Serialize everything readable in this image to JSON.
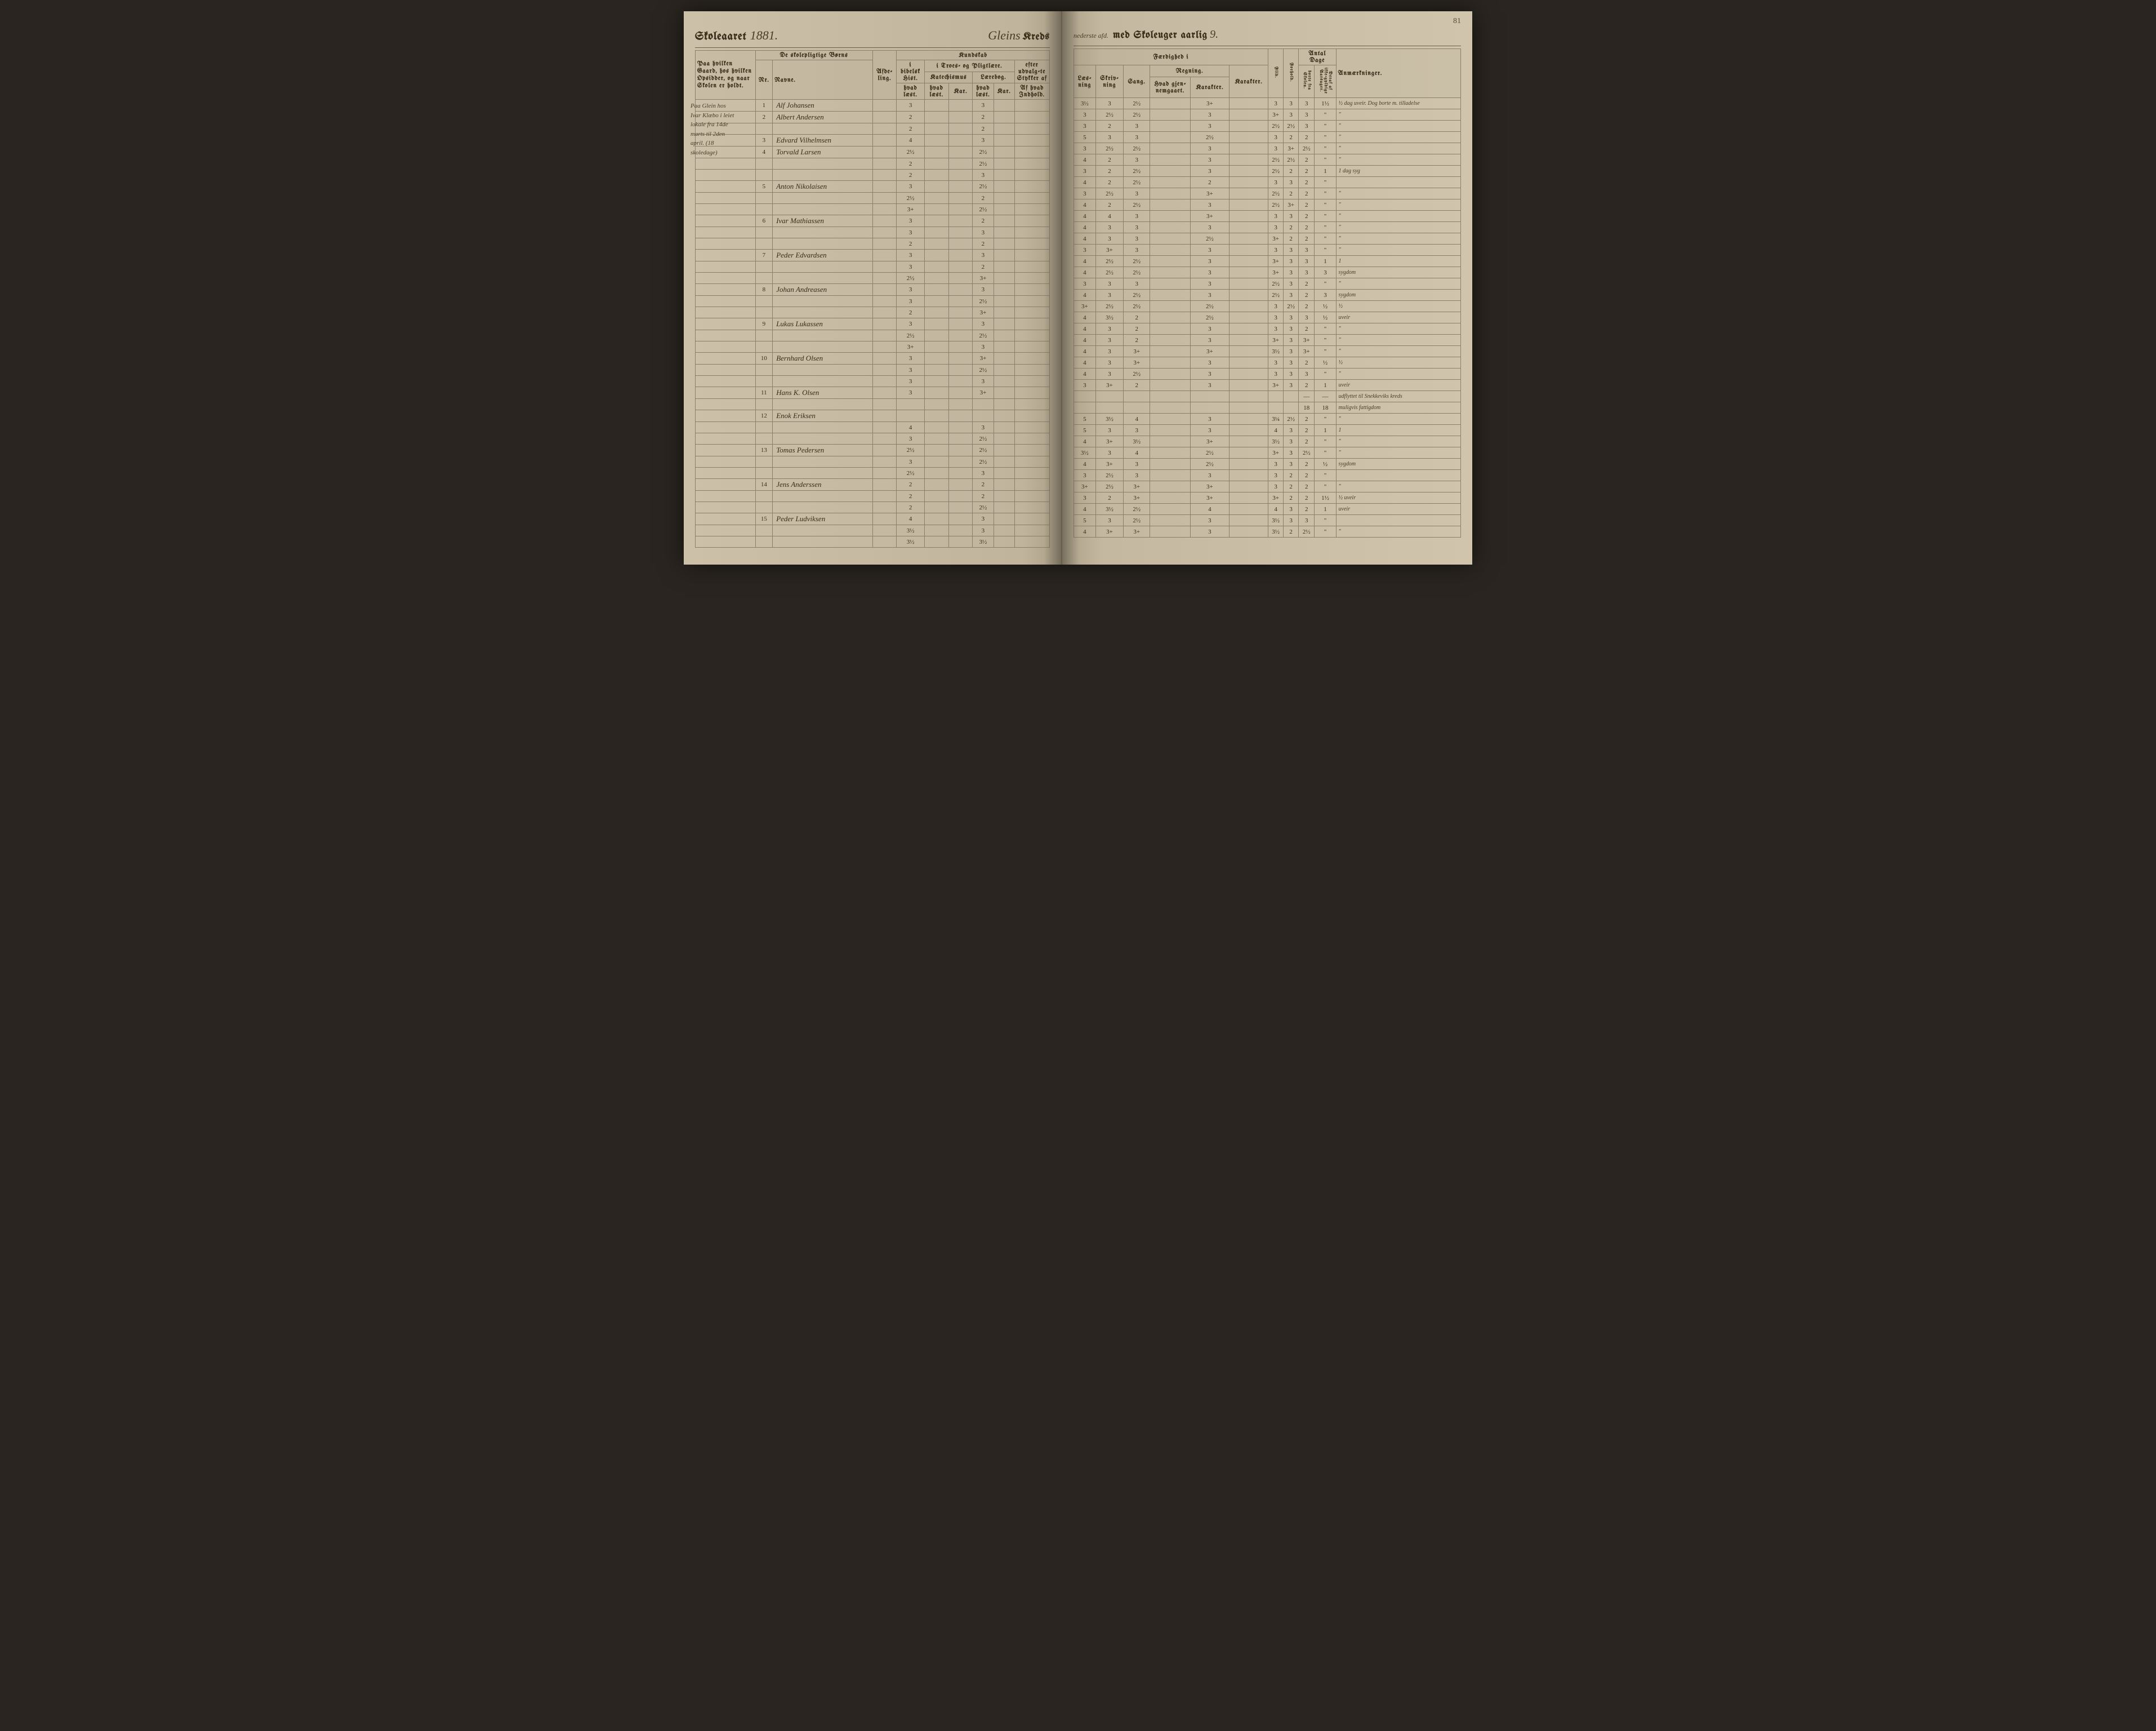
{
  "page_number": "81",
  "header": {
    "left_title": "Skoleaaret",
    "year": "1881.",
    "kreds_name": "Gleins",
    "kreds_label": "Kreds",
    "afd_note": "nederste afd.",
    "right_label": "med Skoleuger aarlig",
    "weeks": "9."
  },
  "columns_left": {
    "gaard": "Paa hvilken Gaard, hos hvilken Opsidder, og naar Skolen er holdt.",
    "borns": "De skolepligtige Børns",
    "nr": "Nr.",
    "navne": "Navne.",
    "afdeling": "Afde-ling.",
    "kundskab": "Kundskab",
    "bibel": "i bibelsk Hist.",
    "troes": "i Troes- og Pligtlære.",
    "udvalg": "efter udvalg-te Stykker af",
    "hvad_laest": "hvad læst.",
    "katechismus": "Katechismus",
    "laerebog": "Lærebog.",
    "lesebo": "Læsebo-gen",
    "karakter": "Karakter",
    "kar": "Kar.",
    "af_hvad": "Af hvad Indhold."
  },
  "columns_right": {
    "faerdighed": "Færdighed i",
    "laesning": "Læs-ning",
    "skrivning": "Skriv-ning",
    "sang": "Sang.",
    "regning": "Regning.",
    "hvad_gjen": "Hvad gjen-nemgaaet.",
    "karakter": "Karakter.",
    "flid": "Flid.",
    "forhold": "Forhold.",
    "antal_dage": "Antal Dage",
    "borte": "borte fra Skolen.",
    "deraf": "Deraf af ikke-gyldige Aarsager.",
    "anm": "Anmærkninger."
  },
  "side_note": "Paa Glein hos Ivar Klæbo i leiet lokale fra 14de marts til 2den april. (18 skoledage)",
  "rows": [
    {
      "nr": "1",
      "navn": "Alf Johansen",
      "k1": "3",
      "k2": "",
      "k3": "3",
      "k4": "",
      "r1": "3½",
      "r2": "3",
      "r3": "2½",
      "r4": "3+",
      "f": "3",
      "fo": "3",
      "d1": "3",
      "d2": "1½",
      "anm": "½ dag uveir. Dog borte m. tilladelse"
    },
    {
      "nr": "2",
      "navn": "Albert Andersen",
      "k1": "2",
      "k2": "",
      "k3": "2",
      "k4": "",
      "r1": "3",
      "r2": "2½",
      "r3": "2½",
      "r4": "3",
      "f": "3+",
      "fo": "3",
      "d1": "3",
      "d2": "\"",
      "anm": "\""
    },
    {
      "nr": "",
      "navn": "",
      "k1": "2",
      "k2": "",
      "k3": "2",
      "k4": "",
      "r1": "3",
      "r2": "2",
      "r3": "3",
      "r4": "3",
      "f": "2½",
      "fo": "2½",
      "d1": "3",
      "d2": "\"",
      "anm": "\""
    },
    {
      "nr": "3",
      "navn": "Edvard Vilhelmsen",
      "k1": "4",
      "k2": "",
      "k3": "3",
      "k4": "",
      "r1": "5",
      "r2": "3",
      "r3": "3",
      "r4": "2½",
      "f": "3",
      "fo": "2",
      "d1": "2",
      "d2": "\"",
      "anm": "\""
    },
    {
      "nr": "4",
      "navn": "Torvald Larsen",
      "k1": "2½",
      "k2": "",
      "k3": "2½",
      "k4": "",
      "r1": "3",
      "r2": "2½",
      "r3": "2½",
      "r4": "3",
      "f": "3",
      "fo": "3+",
      "d1": "2½",
      "d2": "\"",
      "anm": "\""
    },
    {
      "nr": "",
      "navn": "",
      "k1": "2",
      "k2": "",
      "k3": "2½",
      "k4": "",
      "r1": "4",
      "r2": "2",
      "r3": "3",
      "r4": "3",
      "f": "2½",
      "fo": "2½",
      "d1": "2",
      "d2": "\"",
      "anm": "\""
    },
    {
      "nr": "",
      "navn": "",
      "k1": "2",
      "k2": "",
      "k3": "3",
      "k4": "",
      "r1": "3",
      "r2": "2",
      "r3": "2½",
      "r4": "3",
      "f": "2½",
      "fo": "2",
      "d1": "2",
      "d2": "1",
      "anm": "1 dag syg"
    },
    {
      "nr": "5",
      "navn": "Anton Nikolaisen",
      "k1": "3",
      "k2": "",
      "k3": "2½",
      "k4": "",
      "r1": "4",
      "r2": "2",
      "r3": "2½",
      "r4": "2",
      "f": "3",
      "fo": "3",
      "d1": "2",
      "d2": "\"",
      "anm": ""
    },
    {
      "nr": "",
      "navn": "",
      "k1": "2½",
      "k2": "",
      "k3": "2",
      "k4": "",
      "r1": "3",
      "r2": "2½",
      "r3": "3",
      "r4": "3+",
      "f": "2½",
      "fo": "2",
      "d1": "2",
      "d2": "\"",
      "anm": "\""
    },
    {
      "nr": "",
      "navn": "",
      "k1": "3+",
      "k2": "",
      "k3": "2½",
      "k4": "",
      "r1": "4",
      "r2": "2",
      "r3": "2½",
      "r4": "3",
      "f": "2½",
      "fo": "3+",
      "d1": "2",
      "d2": "\"",
      "anm": "\""
    },
    {
      "nr": "6",
      "navn": "Ivar Mathiassen",
      "k1": "3",
      "k2": "",
      "k3": "2",
      "k4": "",
      "r1": "4",
      "r2": "4",
      "r3": "3",
      "r4": "3+",
      "f": "3",
      "fo": "3",
      "d1": "2",
      "d2": "\"",
      "anm": "\""
    },
    {
      "nr": "",
      "navn": "",
      "k1": "3",
      "k2": "",
      "k3": "3",
      "k4": "",
      "r1": "4",
      "r2": "3",
      "r3": "3",
      "r4": "3",
      "f": "3",
      "fo": "2",
      "d1": "2",
      "d2": "\"",
      "anm": "\""
    },
    {
      "nr": "",
      "navn": "",
      "k1": "2",
      "k2": "",
      "k3": "2",
      "k4": "",
      "r1": "4",
      "r2": "3",
      "r3": "3",
      "r4": "2½",
      "f": "3+",
      "fo": "2",
      "d1": "2",
      "d2": "\"",
      "anm": "\""
    },
    {
      "nr": "7",
      "navn": "Peder Edvardsen",
      "k1": "3",
      "k2": "",
      "k3": "3",
      "k4": "",
      "r1": "3",
      "r2": "3+",
      "r3": "3",
      "r4": "3",
      "f": "3",
      "fo": "3",
      "d1": "3",
      "d2": "\"",
      "anm": "\""
    },
    {
      "nr": "",
      "navn": "",
      "k1": "3",
      "k2": "",
      "k3": "2",
      "k4": "",
      "r1": "4",
      "r2": "2½",
      "r3": "2½",
      "r4": "3",
      "f": "3+",
      "fo": "3",
      "d1": "3",
      "d2": "1",
      "anm": "1"
    },
    {
      "nr": "",
      "navn": "",
      "k1": "2½",
      "k2": "",
      "k3": "3+",
      "k4": "",
      "r1": "4",
      "r2": "2½",
      "r3": "2½",
      "r4": "3",
      "f": "3+",
      "fo": "3",
      "d1": "3",
      "d2": "3",
      "anm": "sygdom"
    },
    {
      "nr": "8",
      "navn": "Johan Andreasen",
      "k1": "3",
      "k2": "",
      "k3": "3",
      "k4": "",
      "r1": "3",
      "r2": "3",
      "r3": "3",
      "r4": "3",
      "f": "2½",
      "fo": "3",
      "d1": "2",
      "d2": "\"",
      "anm": "\""
    },
    {
      "nr": "",
      "navn": "",
      "k1": "3",
      "k2": "",
      "k3": "2½",
      "k4": "",
      "r1": "4",
      "r2": "3",
      "r3": "2½",
      "r4": "3",
      "f": "2½",
      "fo": "3",
      "d1": "2",
      "d2": "3",
      "anm": "sygdom"
    },
    {
      "nr": "",
      "navn": "",
      "k1": "2",
      "k2": "",
      "k3": "3+",
      "k4": "",
      "r1": "3+",
      "r2": "2½",
      "r3": "2½",
      "r4": "2½",
      "f": "3",
      "fo": "2½",
      "d1": "2",
      "d2": "½",
      "anm": "½"
    },
    {
      "nr": "9",
      "navn": "Lukas Lukassen",
      "k1": "3",
      "k2": "",
      "k3": "3",
      "k4": "",
      "r1": "4",
      "r2": "3½",
      "r3": "2",
      "r4": "2½",
      "f": "3",
      "fo": "3",
      "d1": "3",
      "d2": "½",
      "anm": "uveir"
    },
    {
      "nr": "",
      "navn": "",
      "k1": "2½",
      "k2": "",
      "k3": "2½",
      "k4": "",
      "r1": "4",
      "r2": "3",
      "r3": "2",
      "r4": "3",
      "f": "3",
      "fo": "3",
      "d1": "2",
      "d2": "\"",
      "anm": "\""
    },
    {
      "nr": "",
      "navn": "",
      "k1": "3+",
      "k2": "",
      "k3": "3",
      "k4": "",
      "r1": "4",
      "r2": "3",
      "r3": "2",
      "r4": "3",
      "f": "3+",
      "fo": "3",
      "d1": "3+",
      "d2": "\"",
      "anm": "\""
    },
    {
      "nr": "10",
      "navn": "Bernhard Olsen",
      "k1": "3",
      "k2": "",
      "k3": "3+",
      "k4": "",
      "r1": "4",
      "r2": "3",
      "r3": "3+",
      "r4": "3+",
      "f": "3½",
      "fo": "3",
      "d1": "3+",
      "d2": "\"",
      "anm": "\""
    },
    {
      "nr": "",
      "navn": "",
      "k1": "3",
      "k2": "",
      "k3": "2½",
      "k4": "",
      "r1": "4",
      "r2": "3",
      "r3": "3+",
      "r4": "3",
      "f": "3",
      "fo": "3",
      "d1": "2",
      "d2": "½",
      "anm": "½"
    },
    {
      "nr": "",
      "navn": "",
      "k1": "3",
      "k2": "",
      "k3": "3",
      "k4": "",
      "r1": "4",
      "r2": "3",
      "r3": "2½",
      "r4": "3",
      "f": "3",
      "fo": "3",
      "d1": "3",
      "d2": "\"",
      "anm": "\""
    },
    {
      "nr": "11",
      "navn": "Hans K. Olsen",
      "k1": "3",
      "k2": "",
      "k3": "3+",
      "k4": "",
      "r1": "3",
      "r2": "3+",
      "r3": "2",
      "r4": "3",
      "f": "3+",
      "fo": "3",
      "d1": "2",
      "d2": "1",
      "anm": "uveir"
    },
    {
      "nr": "",
      "navn": "",
      "k1": "",
      "k2": "",
      "k3": "",
      "k4": "",
      "r1": "",
      "r2": "",
      "r3": "",
      "r4": "",
      "f": "",
      "fo": "",
      "d1": "—",
      "d2": "—",
      "anm": "udflyttet til Snekkeviks kreds"
    },
    {
      "nr": "12",
      "navn": "Enok Eriksen",
      "k1": "",
      "k2": "",
      "k3": "",
      "k4": "",
      "r1": "",
      "r2": "",
      "r3": "",
      "r4": "",
      "f": "",
      "fo": "",
      "d1": "18",
      "d2": "18",
      "anm": "muligvis fattigdom"
    },
    {
      "nr": "",
      "navn": "",
      "k1": "4",
      "k2": "",
      "k3": "3",
      "k4": "",
      "r1": "5",
      "r2": "3½",
      "r3": "4",
      "r4": "3",
      "f": "3¼",
      "fo": "2½",
      "d1": "2",
      "d2": "\"",
      "anm": "\""
    },
    {
      "nr": "",
      "navn": "",
      "k1": "3",
      "k2": "",
      "k3": "2½",
      "k4": "",
      "r1": "5",
      "r2": "3",
      "r3": "3",
      "r4": "3",
      "f": "4",
      "fo": "3",
      "d1": "2",
      "d2": "1",
      "anm": "1"
    },
    {
      "nr": "13",
      "navn": "Tomas Pedersen",
      "k1": "2½",
      "k2": "",
      "k3": "2½",
      "k4": "",
      "r1": "4",
      "r2": "3+",
      "r3": "3½",
      "r4": "3+",
      "f": "3½",
      "fo": "3",
      "d1": "2",
      "d2": "\"",
      "anm": "\""
    },
    {
      "nr": "",
      "navn": "",
      "k1": "3",
      "k2": "",
      "k3": "2½",
      "k4": "",
      "r1": "3½",
      "r2": "3",
      "r3": "4",
      "r4": "2½",
      "f": "3+",
      "fo": "3",
      "d1": "2½",
      "d2": "\"",
      "anm": "\""
    },
    {
      "nr": "",
      "navn": "",
      "k1": "2½",
      "k2": "",
      "k3": "3",
      "k4": "",
      "r1": "4",
      "r2": "3+",
      "r3": "3",
      "r4": "2½",
      "f": "3",
      "fo": "3",
      "d1": "2",
      "d2": "½",
      "anm": "sygdom"
    },
    {
      "nr": "14",
      "navn": "Jens Anderssen",
      "k1": "2",
      "k2": "",
      "k3": "2",
      "k4": "",
      "r1": "3",
      "r2": "2½",
      "r3": "3",
      "r4": "3",
      "f": "3",
      "fo": "2",
      "d1": "2",
      "d2": "\"",
      "anm": ""
    },
    {
      "nr": "",
      "navn": "",
      "k1": "2",
      "k2": "",
      "k3": "2",
      "k4": "",
      "r1": "3+",
      "r2": "2½",
      "r3": "3+",
      "r4": "3+",
      "f": "3",
      "fo": "2",
      "d1": "2",
      "d2": "\"",
      "anm": "\""
    },
    {
      "nr": "",
      "navn": "",
      "k1": "2",
      "k2": "",
      "k3": "2½",
      "k4": "",
      "r1": "3",
      "r2": "2",
      "r3": "3+",
      "r4": "3+",
      "f": "3+",
      "fo": "2",
      "d1": "2",
      "d2": "1½",
      "anm": "½ uveir"
    },
    {
      "nr": "15",
      "navn": "Peder Ludviksen",
      "k1": "4",
      "k2": "",
      "k3": "3",
      "k4": "",
      "r1": "4",
      "r2": "3½",
      "r3": "2½",
      "r4": "4",
      "f": "4",
      "fo": "3",
      "d1": "2",
      "d2": "1",
      "anm": "uveir"
    },
    {
      "nr": "",
      "navn": "",
      "k1": "3½",
      "k2": "",
      "k3": "3",
      "k4": "",
      "r1": "5",
      "r2": "3",
      "r3": "2½",
      "r4": "3",
      "f": "3½",
      "fo": "3",
      "d1": "3",
      "d2": "\"",
      "anm": ""
    },
    {
      "nr": "",
      "navn": "",
      "k1": "3½",
      "k2": "",
      "k3": "3½",
      "k4": "",
      "r1": "4",
      "r2": "3+",
      "r3": "3+",
      "r4": "3",
      "f": "3½",
      "fo": "2",
      "d1": "2½",
      "d2": "\"",
      "anm": "\""
    }
  ]
}
